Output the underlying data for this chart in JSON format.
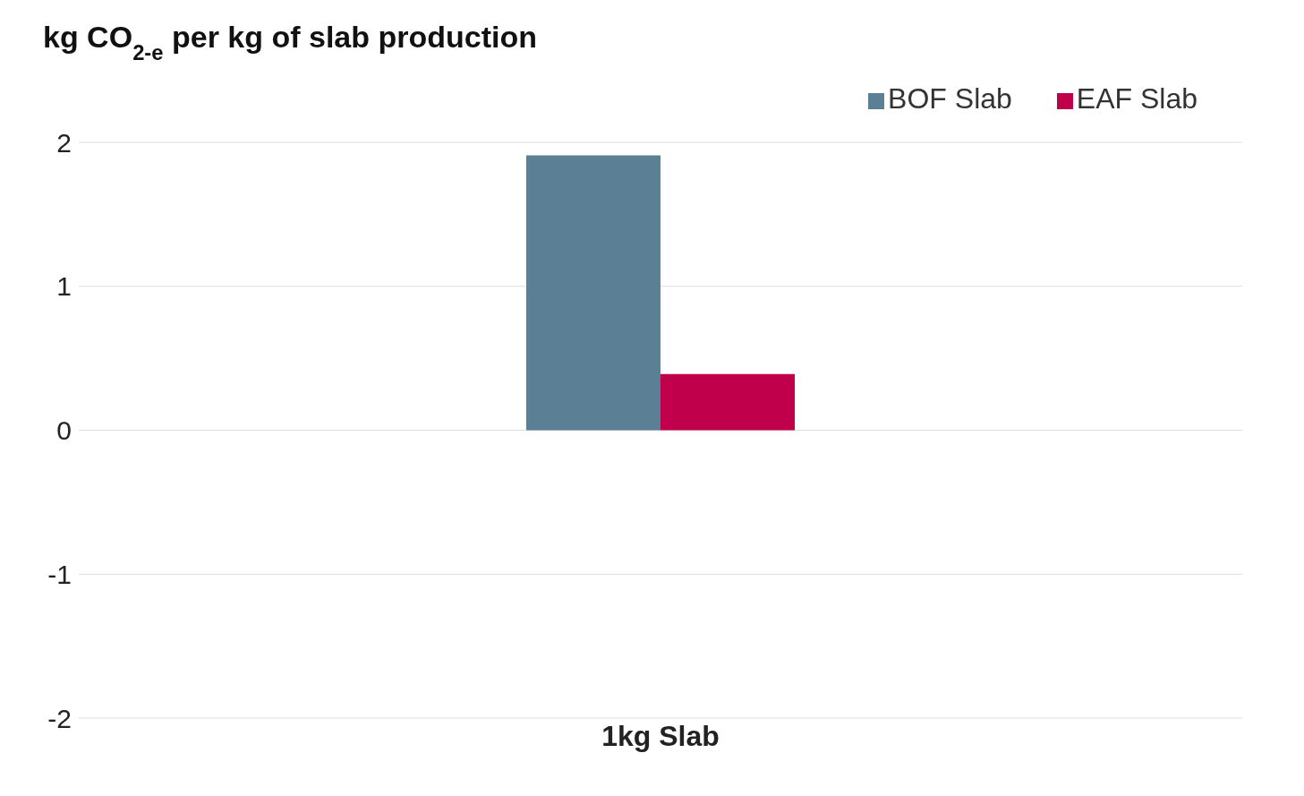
{
  "chart_data": {
    "type": "bar",
    "title": "kg CO$_{2-e}$ per kg of slab production",
    "categories": [
      "1kg Slab"
    ],
    "series": [
      {
        "name": "BOF Slab",
        "color": "#5b7f95",
        "values": [
          1.91
        ]
      },
      {
        "name": "EAF Slab",
        "color": "#c0004a",
        "values": [
          0.39
        ]
      }
    ],
    "ylim": [
      -2,
      2
    ],
    "yticks": [
      -2,
      -1,
      0,
      1,
      2
    ],
    "grid": "y",
    "legend": "top right"
  }
}
